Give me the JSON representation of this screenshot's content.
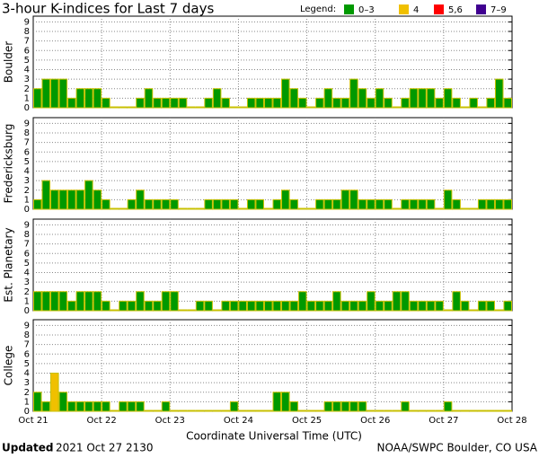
{
  "title": "3-hour K-indices for Last 7 days",
  "legend": {
    "title": "Legend:",
    "items": [
      {
        "label": "0–3",
        "color": "#009900"
      },
      {
        "label": "4",
        "color": "#f0c000"
      },
      {
        "label": "5,6",
        "color": "#ff0000"
      },
      {
        "label": "7–9",
        "color": "#400090"
      }
    ]
  },
  "x_tick_labels": [
    "Oct 21",
    "Oct 22",
    "Oct 23",
    "Oct 24",
    "Oct 25",
    "Oct 26",
    "Oct 27",
    "Oct 28"
  ],
  "x_label": "Coordinate Universal Time (UTC)",
  "footer": {
    "updated_label": "Updated",
    "updated": "2021 Oct 27 2130",
    "source": "NOAA/SWPC Boulder, CO USA"
  },
  "chart_data": [
    {
      "type": "bar",
      "ylabel": "Boulder",
      "ylim": [
        0,
        9.6
      ],
      "yticks": [
        0,
        1,
        2,
        3,
        4,
        5,
        6,
        7,
        8,
        9
      ],
      "grid": true,
      "values": [
        2,
        3,
        3,
        3,
        1,
        2,
        2,
        2,
        1,
        0,
        0,
        0,
        1,
        2,
        1,
        1,
        1,
        1,
        0,
        0,
        1,
        2,
        1,
        0,
        0,
        1,
        1,
        1,
        1,
        3,
        2,
        1,
        0,
        1,
        2,
        1,
        1,
        3,
        2,
        1,
        2,
        1,
        0,
        1,
        2,
        2,
        2,
        1,
        2,
        1,
        0,
        1,
        0,
        1,
        3,
        1
      ]
    },
    {
      "type": "bar",
      "ylabel": "Fredericksburg",
      "ylim": [
        0,
        9.6
      ],
      "yticks": [
        0,
        1,
        2,
        3,
        4,
        5,
        6,
        7,
        8,
        9
      ],
      "grid": true,
      "values": [
        1,
        3,
        2,
        2,
        2,
        2,
        3,
        2,
        1,
        0,
        0,
        1,
        2,
        1,
        1,
        1,
        1,
        0,
        0,
        0,
        1,
        1,
        1,
        1,
        0,
        1,
        1,
        0,
        1,
        2,
        1,
        0,
        0,
        1,
        1,
        1,
        2,
        2,
        1,
        1,
        1,
        1,
        0,
        1,
        1,
        1,
        1,
        0,
        2,
        1,
        0,
        0,
        1,
        1,
        1,
        1
      ]
    },
    {
      "type": "bar",
      "ylabel": "Est. Planetary",
      "ylim": [
        0,
        9.6
      ],
      "yticks": [
        0,
        1,
        2,
        3,
        4,
        5,
        6,
        7,
        8,
        9
      ],
      "grid": true,
      "values": [
        2,
        2,
        2,
        2,
        1,
        2,
        2,
        2,
        1,
        0,
        1,
        1,
        2,
        1,
        1,
        2,
        2,
        0,
        0,
        1,
        1,
        0,
        1,
        1,
        1,
        1,
        1,
        1,
        1,
        1,
        1,
        2,
        1,
        1,
        1,
        2,
        1,
        1,
        1,
        2,
        1,
        1,
        2,
        2,
        1,
        1,
        1,
        1,
        0,
        2,
        1,
        0,
        1,
        1,
        0,
        1
      ]
    },
    {
      "type": "bar",
      "ylabel": "College",
      "ylim": [
        0,
        9.6
      ],
      "yticks": [
        0,
        1,
        2,
        3,
        4,
        5,
        6,
        7,
        8,
        9
      ],
      "grid": true,
      "values": [
        2,
        1,
        4,
        2,
        1,
        1,
        1,
        1,
        1,
        0,
        1,
        1,
        1,
        0,
        0,
        1,
        0,
        0,
        0,
        0,
        0,
        0,
        0,
        1,
        0,
        0,
        0,
        0,
        2,
        2,
        1,
        0,
        0,
        0,
        1,
        1,
        1,
        1,
        1,
        0,
        0,
        0,
        0,
        1,
        0,
        0,
        0,
        0,
        1,
        0,
        0,
        0,
        0,
        0,
        0,
        0
      ]
    }
  ]
}
